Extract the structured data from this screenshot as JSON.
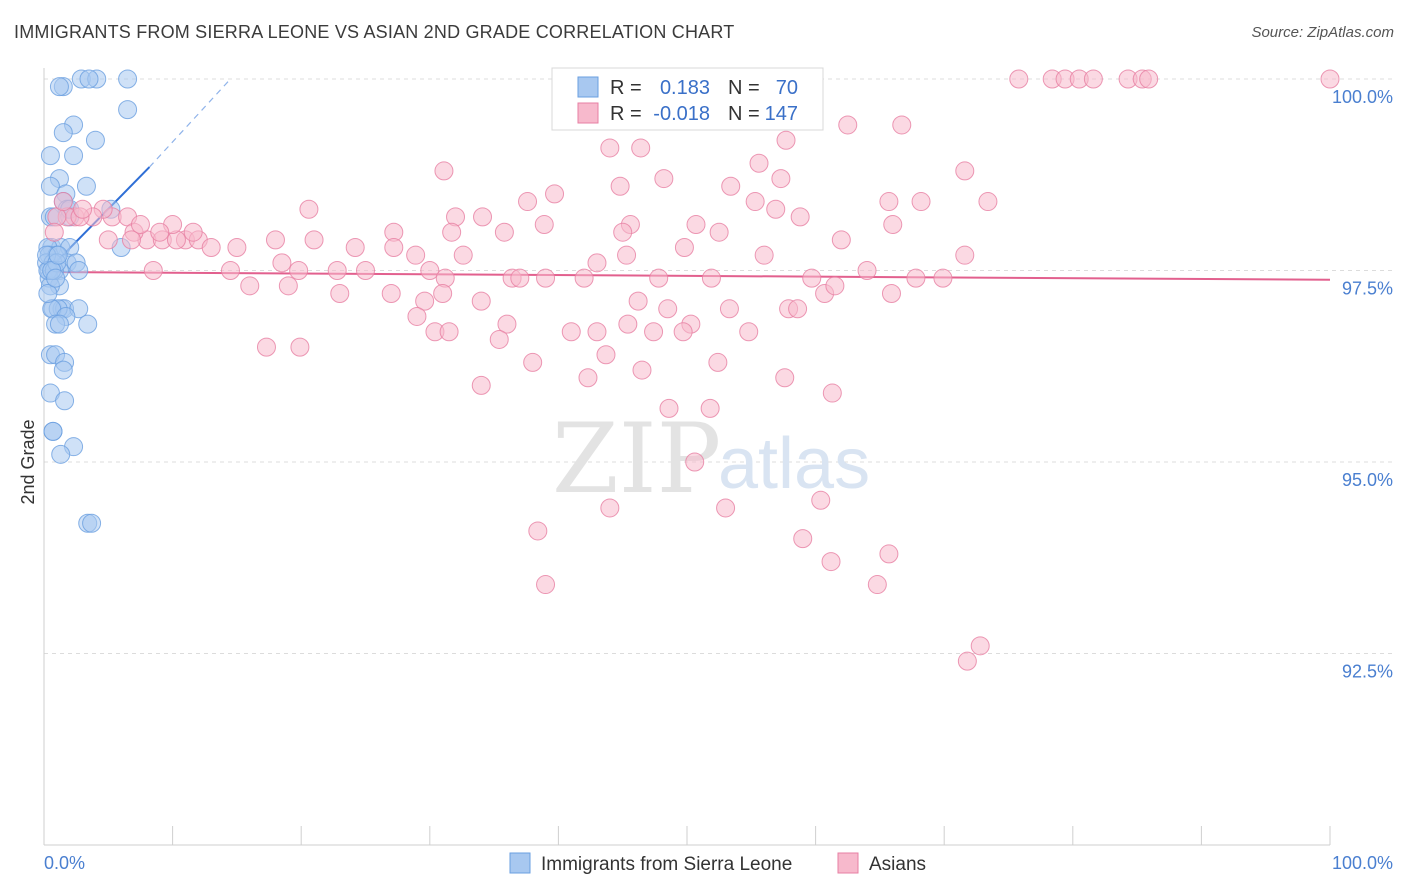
{
  "header": {
    "title": "IMMIGRANTS FROM SIERRA LEONE VS ASIAN 2ND GRADE CORRELATION CHART",
    "source": "Source: ZipAtlas.com"
  },
  "watermark": {
    "zip": "ZIP",
    "atlas": "atlas"
  },
  "legend_box": {
    "rows": [
      {
        "r_label": "R =",
        "r_value": "0.183",
        "n_label": "N =",
        "n_value": "70",
        "color": "#a8c8f0"
      },
      {
        "r_label": "R =",
        "r_value": "-0.018",
        "n_label": "N =",
        "n_value": "147",
        "color": "#f7b9cc"
      }
    ]
  },
  "bottom_legend": [
    {
      "label": "Immigrants from Sierra Leone",
      "color": "#a8c8f0"
    },
    {
      "label": "Asians",
      "color": "#f7b9cc"
    }
  ],
  "chart_data": {
    "type": "scatter",
    "xlabel": "",
    "ylabel": "2nd Grade",
    "xlim": [
      0,
      100
    ],
    "ylim": [
      90,
      100.4
    ],
    "x_tick_labels": [
      "0.0%",
      "100.0%"
    ],
    "y_ticks": [
      {
        "value": 100.0,
        "label": "100.0%"
      },
      {
        "value": 97.5,
        "label": "97.5%"
      },
      {
        "value": 95.0,
        "label": "95.0%"
      },
      {
        "value": 92.5,
        "label": "92.5%"
      }
    ],
    "grid": "dashed-horizontal",
    "series": [
      {
        "name": "Immigrants from Sierra Leone",
        "color": "#6a9fe0",
        "fill": "#a8c8f0",
        "trend": {
          "x": [
            0.3,
            8.2
          ],
          "y": [
            97.5,
            98.85
          ],
          "extend_to": [
            14.5,
            100.0
          ]
        },
        "points": [
          [
            2.9,
            100.0
          ],
          [
            4.1,
            100.0
          ],
          [
            3.5,
            100.0
          ],
          [
            6.5,
            100.0
          ],
          [
            1.5,
            99.9
          ],
          [
            1.2,
            99.9
          ],
          [
            6.5,
            99.6
          ],
          [
            2.3,
            99.4
          ],
          [
            1.5,
            99.3
          ],
          [
            4.0,
            99.2
          ],
          [
            0.5,
            99.0
          ],
          [
            2.3,
            99.0
          ],
          [
            1.2,
            98.7
          ],
          [
            3.3,
            98.6
          ],
          [
            0.5,
            98.6
          ],
          [
            1.7,
            98.5
          ],
          [
            1.5,
            98.4
          ],
          [
            5.2,
            98.3
          ],
          [
            1.8,
            98.3
          ],
          [
            0.5,
            98.2
          ],
          [
            0.8,
            98.2
          ],
          [
            2.0,
            98.2
          ],
          [
            0.6,
            97.8
          ],
          [
            1.3,
            97.8
          ],
          [
            0.3,
            97.8
          ],
          [
            2.0,
            97.8
          ],
          [
            6.0,
            97.8
          ],
          [
            0.4,
            97.7
          ],
          [
            1.0,
            97.7
          ],
          [
            1.8,
            97.6
          ],
          [
            2.5,
            97.6
          ],
          [
            0.2,
            97.6
          ],
          [
            0.7,
            97.6
          ],
          [
            1.2,
            97.5
          ],
          [
            0.4,
            97.5
          ],
          [
            2.7,
            97.5
          ],
          [
            0.4,
            97.4
          ],
          [
            1.2,
            97.3
          ],
          [
            0.5,
            97.3
          ],
          [
            0.7,
            97.0
          ],
          [
            1.4,
            97.0
          ],
          [
            1.6,
            97.0
          ],
          [
            1.1,
            97.0
          ],
          [
            2.7,
            97.0
          ],
          [
            0.6,
            97.0
          ],
          [
            1.7,
            96.9
          ],
          [
            3.4,
            96.8
          ],
          [
            0.9,
            96.8
          ],
          [
            1.2,
            96.8
          ],
          [
            0.5,
            96.4
          ],
          [
            0.9,
            96.4
          ],
          [
            1.6,
            96.3
          ],
          [
            1.5,
            96.2
          ],
          [
            0.5,
            95.9
          ],
          [
            1.6,
            95.8
          ],
          [
            0.7,
            95.4
          ],
          [
            0.7,
            95.4
          ],
          [
            2.3,
            95.2
          ],
          [
            1.3,
            95.1
          ],
          [
            3.4,
            94.2
          ],
          [
            3.7,
            94.2
          ],
          [
            0.3,
            97.5
          ],
          [
            0.2,
            97.7
          ],
          [
            0.8,
            97.5
          ],
          [
            1.0,
            97.6
          ],
          [
            0.3,
            97.2
          ],
          [
            0.6,
            97.5
          ],
          [
            2.0,
            98.3
          ],
          [
            1.1,
            97.7
          ],
          [
            0.9,
            97.4
          ]
        ]
      },
      {
        "name": "Asians",
        "color": "#e77fa3",
        "fill": "#f7b9cc",
        "trend": {
          "x": [
            0.0,
            100.0
          ],
          "y": [
            97.48,
            97.38
          ]
        },
        "points": [
          [
            75.8,
            100.0
          ],
          [
            78.4,
            100.0
          ],
          [
            79.4,
            100.0
          ],
          [
            80.5,
            100.0
          ],
          [
            81.6,
            100.0
          ],
          [
            84.3,
            100.0
          ],
          [
            85.4,
            100.0
          ],
          [
            85.9,
            100.0
          ],
          [
            100.0,
            100.0
          ],
          [
            62.5,
            99.4
          ],
          [
            66.7,
            99.4
          ],
          [
            57.7,
            99.2
          ],
          [
            44.0,
            99.1
          ],
          [
            46.4,
            99.1
          ],
          [
            55.6,
            98.9
          ],
          [
            71.6,
            98.8
          ],
          [
            31.1,
            98.8
          ],
          [
            48.2,
            98.7
          ],
          [
            57.3,
            98.7
          ],
          [
            44.8,
            98.6
          ],
          [
            53.4,
            98.6
          ],
          [
            39.7,
            98.5
          ],
          [
            37.6,
            98.4
          ],
          [
            55.3,
            98.4
          ],
          [
            65.7,
            98.4
          ],
          [
            68.2,
            98.4
          ],
          [
            73.4,
            98.4
          ],
          [
            56.9,
            98.3
          ],
          [
            58.8,
            98.2
          ],
          [
            20.6,
            98.3
          ],
          [
            32.0,
            98.2
          ],
          [
            34.1,
            98.2
          ],
          [
            38.9,
            98.1
          ],
          [
            45.6,
            98.1
          ],
          [
            50.7,
            98.1
          ],
          [
            66.0,
            98.1
          ],
          [
            35.8,
            98.0
          ],
          [
            27.2,
            98.0
          ],
          [
            45.0,
            98.0
          ],
          [
            52.5,
            98.0
          ],
          [
            31.7,
            98.0
          ],
          [
            5.0,
            97.9
          ],
          [
            8.0,
            97.9
          ],
          [
            9.2,
            97.9
          ],
          [
            11.0,
            97.9
          ],
          [
            12.0,
            97.9
          ],
          [
            13.0,
            97.8
          ],
          [
            15.0,
            97.8
          ],
          [
            18.0,
            97.9
          ],
          [
            21.0,
            97.9
          ],
          [
            24.2,
            97.8
          ],
          [
            27.2,
            97.8
          ],
          [
            49.8,
            97.8
          ],
          [
            56.0,
            97.7
          ],
          [
            62.0,
            97.9
          ],
          [
            71.6,
            97.7
          ],
          [
            28.9,
            97.7
          ],
          [
            32.6,
            97.7
          ],
          [
            43.0,
            97.6
          ],
          [
            45.3,
            97.7
          ],
          [
            18.5,
            97.6
          ],
          [
            19.8,
            97.5
          ],
          [
            14.5,
            97.5
          ],
          [
            22.8,
            97.5
          ],
          [
            25.0,
            97.5
          ],
          [
            30.0,
            97.5
          ],
          [
            31.2,
            97.4
          ],
          [
            36.4,
            97.4
          ],
          [
            37.0,
            97.4
          ],
          [
            39.0,
            97.4
          ],
          [
            42.0,
            97.4
          ],
          [
            47.8,
            97.4
          ],
          [
            51.9,
            97.4
          ],
          [
            59.7,
            97.4
          ],
          [
            67.8,
            97.4
          ],
          [
            64.0,
            97.5
          ],
          [
            16.0,
            97.3
          ],
          [
            19.0,
            97.3
          ],
          [
            23.0,
            97.2
          ],
          [
            27.0,
            97.2
          ],
          [
            29.6,
            97.1
          ],
          [
            31.0,
            97.2
          ],
          [
            34.0,
            97.1
          ],
          [
            46.2,
            97.1
          ],
          [
            48.5,
            97.0
          ],
          [
            53.3,
            97.0
          ],
          [
            57.9,
            97.0
          ],
          [
            58.6,
            97.0
          ],
          [
            60.7,
            97.2
          ],
          [
            61.5,
            97.3
          ],
          [
            65.9,
            97.2
          ],
          [
            69.9,
            97.4
          ],
          [
            29.0,
            96.9
          ],
          [
            36.0,
            96.8
          ],
          [
            45.4,
            96.8
          ],
          [
            50.3,
            96.8
          ],
          [
            41.0,
            96.7
          ],
          [
            43.0,
            96.7
          ],
          [
            47.4,
            96.7
          ],
          [
            49.7,
            96.7
          ],
          [
            54.8,
            96.7
          ],
          [
            30.4,
            96.7
          ],
          [
            31.5,
            96.7
          ],
          [
            35.4,
            96.6
          ],
          [
            17.3,
            96.5
          ],
          [
            19.9,
            96.5
          ],
          [
            43.7,
            96.4
          ],
          [
            38.0,
            96.3
          ],
          [
            46.5,
            96.2
          ],
          [
            52.4,
            96.3
          ],
          [
            57.6,
            96.1
          ],
          [
            42.3,
            96.1
          ],
          [
            34.0,
            96.0
          ],
          [
            51.8,
            95.7
          ],
          [
            61.3,
            95.9
          ],
          [
            48.6,
            95.7
          ],
          [
            50.6,
            95.0
          ],
          [
            44.0,
            94.4
          ],
          [
            53.0,
            94.4
          ],
          [
            60.4,
            94.5
          ],
          [
            38.4,
            94.1
          ],
          [
            59.0,
            94.0
          ],
          [
            65.7,
            93.8
          ],
          [
            61.2,
            93.7
          ],
          [
            64.8,
            93.4
          ],
          [
            39.0,
            93.4
          ],
          [
            72.8,
            92.6
          ],
          [
            71.8,
            92.4
          ],
          [
            5.3,
            98.2
          ],
          [
            6.5,
            98.2
          ],
          [
            7.0,
            98.0
          ],
          [
            7.5,
            98.1
          ],
          [
            6.8,
            97.9
          ],
          [
            10.3,
            97.9
          ],
          [
            8.5,
            97.5
          ],
          [
            10.0,
            98.1
          ],
          [
            9.0,
            98.0
          ],
          [
            11.6,
            98.0
          ],
          [
            4.6,
            98.3
          ],
          [
            3.8,
            98.2
          ],
          [
            2.4,
            98.2
          ],
          [
            1.8,
            98.2
          ],
          [
            1.0,
            98.2
          ],
          [
            1.5,
            98.4
          ],
          [
            2.8,
            98.2
          ],
          [
            0.8,
            98.0
          ],
          [
            3.0,
            98.3
          ]
        ]
      }
    ]
  }
}
